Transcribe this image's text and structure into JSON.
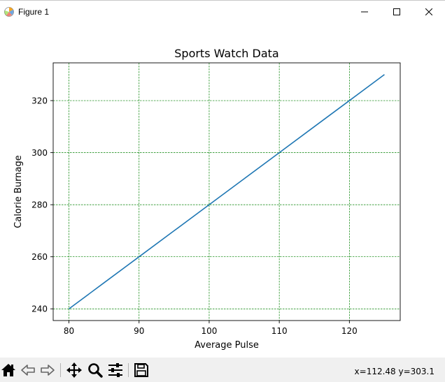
{
  "window": {
    "title": "Figure 1",
    "icon": "matplotlib-icon",
    "controls": {
      "minimize_icon": "minimize-icon",
      "maximize_icon": "maximize-icon",
      "close_icon": "close-icon"
    }
  },
  "chart_data": {
    "type": "line",
    "title": "Sports Watch Data",
    "xlabel": "Average Pulse",
    "ylabel": "Calorie Burnage",
    "x": [
      80,
      85,
      90,
      95,
      100,
      105,
      110,
      115,
      120,
      125
    ],
    "series": [
      {
        "values": [
          240,
          250,
          260,
          270,
          280,
          290,
          300,
          310,
          320,
          330
        ],
        "color": "#1f77b4"
      }
    ],
    "xlim": [
      77.75,
      127.25
    ],
    "ylim": [
      235.5,
      334.5
    ],
    "xticks": [
      80,
      90,
      100,
      110,
      120
    ],
    "yticks": [
      240,
      260,
      280,
      300,
      320
    ],
    "grid": true,
    "grid_color": "#008000",
    "grid_style": "dashed"
  },
  "toolbar": {
    "buttons": [
      {
        "name": "home-button",
        "icon": "home-icon"
      },
      {
        "name": "back-button",
        "icon": "back-arrow-icon"
      },
      {
        "name": "forward-button",
        "icon": "forward-arrow-icon"
      },
      {
        "name": "pan-button",
        "icon": "move-icon"
      },
      {
        "name": "zoom-button",
        "icon": "magnifier-icon"
      },
      {
        "name": "configure-subplots-button",
        "icon": "sliders-icon"
      },
      {
        "name": "save-button",
        "icon": "floppy-disk-icon"
      }
    ],
    "coordinates": "x=112.48 y=303.1"
  }
}
